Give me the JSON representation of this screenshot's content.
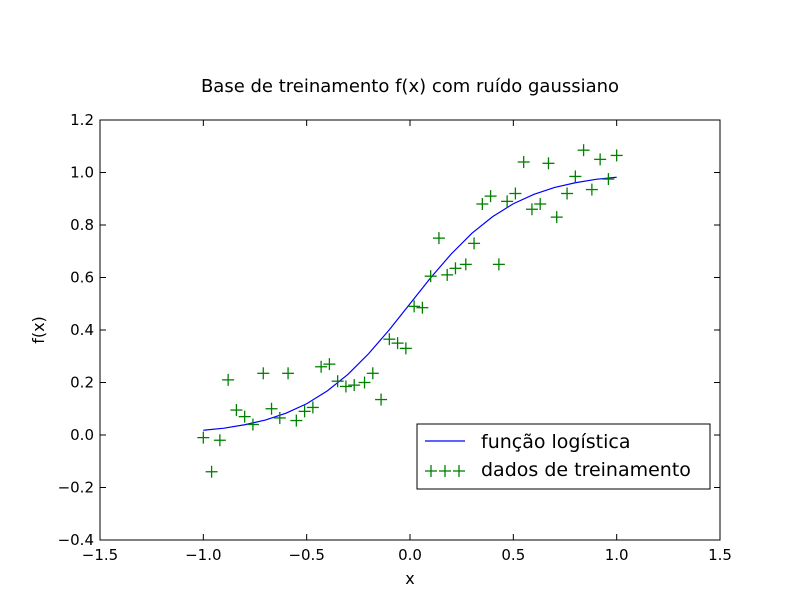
{
  "chart_data": {
    "type": "line",
    "title": "Base de treinamento f(x) com ruído gaussiano",
    "xlabel": "x",
    "ylabel": "f(x)",
    "xlim": [
      -1.5,
      1.5
    ],
    "ylim": [
      -0.4,
      1.2
    ],
    "xticks": [
      "−1.5",
      "−1.0",
      "−0.5",
      "0.0",
      "0.5",
      "1.0",
      "1.5"
    ],
    "yticks": [
      "−0.4",
      "−0.2",
      "0.0",
      "0.2",
      "0.4",
      "0.6",
      "0.8",
      "1.0",
      "1.2"
    ],
    "grid": false,
    "legend_position": "lower-right",
    "series": [
      {
        "name": "função logística",
        "kind": "line",
        "color": "#0000ff",
        "function": "logistic",
        "x_range": [
          -1.0,
          1.0
        ],
        "points": [
          [
            -1.0,
            0.018
          ],
          [
            -0.9,
            0.026
          ],
          [
            -0.8,
            0.039
          ],
          [
            -0.7,
            0.057
          ],
          [
            -0.6,
            0.083
          ],
          [
            -0.5,
            0.119
          ],
          [
            -0.4,
            0.168
          ],
          [
            -0.3,
            0.231
          ],
          [
            -0.2,
            0.31
          ],
          [
            -0.1,
            0.401
          ],
          [
            0.0,
            0.5
          ],
          [
            0.1,
            0.599
          ],
          [
            0.2,
            0.69
          ],
          [
            0.3,
            0.769
          ],
          [
            0.4,
            0.832
          ],
          [
            0.5,
            0.881
          ],
          [
            0.6,
            0.917
          ],
          [
            0.7,
            0.943
          ],
          [
            0.8,
            0.961
          ],
          [
            0.9,
            0.974
          ],
          [
            1.0,
            0.982
          ]
        ]
      },
      {
        "name": "dados de treinamento",
        "kind": "scatter",
        "marker": "+",
        "color": "#008000",
        "points": [
          [
            -1.0,
            -0.01
          ],
          [
            -0.96,
            -0.14
          ],
          [
            -0.92,
            -0.02
          ],
          [
            -0.88,
            0.21
          ],
          [
            -0.84,
            0.095
          ],
          [
            -0.8,
            0.07
          ],
          [
            -0.76,
            0.04
          ],
          [
            -0.71,
            0.235
          ],
          [
            -0.67,
            0.1
          ],
          [
            -0.63,
            0.065
          ],
          [
            -0.59,
            0.235
          ],
          [
            -0.55,
            0.055
          ],
          [
            -0.51,
            0.09
          ],
          [
            -0.47,
            0.105
          ],
          [
            -0.43,
            0.26
          ],
          [
            -0.39,
            0.27
          ],
          [
            -0.35,
            0.205
          ],
          [
            -0.31,
            0.185
          ],
          [
            -0.27,
            0.19
          ],
          [
            -0.22,
            0.2
          ],
          [
            -0.18,
            0.235
          ],
          [
            -0.14,
            0.135
          ],
          [
            -0.1,
            0.365
          ],
          [
            -0.06,
            0.35
          ],
          [
            -0.02,
            0.33
          ],
          [
            0.02,
            0.49
          ],
          [
            0.06,
            0.485
          ],
          [
            0.1,
            0.605
          ],
          [
            0.14,
            0.75
          ],
          [
            0.18,
            0.61
          ],
          [
            0.22,
            0.635
          ],
          [
            0.27,
            0.65
          ],
          [
            0.31,
            0.73
          ],
          [
            0.35,
            0.88
          ],
          [
            0.39,
            0.91
          ],
          [
            0.43,
            0.65
          ],
          [
            0.47,
            0.89
          ],
          [
            0.51,
            0.92
          ],
          [
            0.55,
            1.04
          ],
          [
            0.59,
            0.86
          ],
          [
            0.63,
            0.88
          ],
          [
            0.67,
            1.035
          ],
          [
            0.71,
            0.83
          ],
          [
            0.76,
            0.92
          ],
          [
            0.8,
            0.985
          ],
          [
            0.84,
            1.085
          ],
          [
            0.88,
            0.935
          ],
          [
            0.92,
            1.05
          ],
          [
            0.96,
            0.975
          ],
          [
            1.0,
            1.065
          ]
        ]
      }
    ]
  }
}
